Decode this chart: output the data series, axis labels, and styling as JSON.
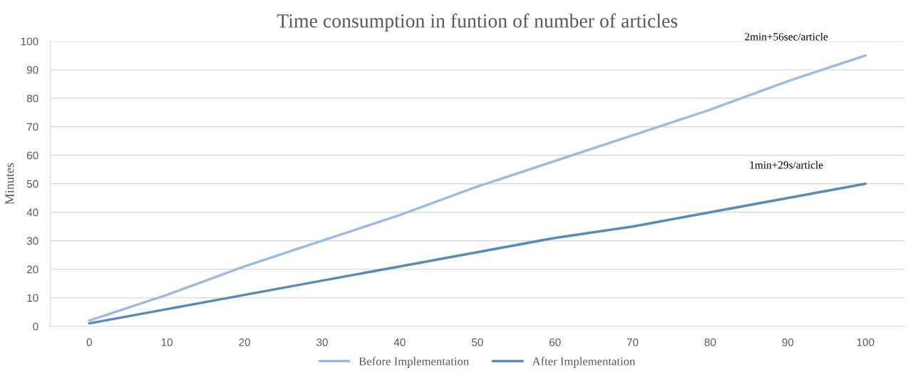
{
  "chart_data": {
    "type": "line",
    "title": "Time consumption in funtion of number of articles",
    "ylabel": "Minutes",
    "categories": [
      "0",
      "10",
      "20",
      "30",
      "40",
      "50",
      "60",
      "70",
      "80",
      "90",
      "100"
    ],
    "series": [
      {
        "name": "Before Implementation",
        "color": "#9dbbdc",
        "values": [
          2,
          11,
          21,
          30,
          39,
          49,
          58,
          67,
          76,
          86,
          95
        ]
      },
      {
        "name": "After Implementation",
        "color": "#5a8ab8",
        "values": [
          1,
          6,
          11,
          16,
          21,
          26,
          31,
          35,
          40,
          45,
          50
        ]
      }
    ],
    "annotations": [
      "2min+56sec/article",
      "1min+29s/article"
    ],
    "ylim": [
      0,
      100
    ],
    "yticks": [
      0,
      10,
      20,
      30,
      40,
      50,
      60,
      70,
      80,
      90,
      100
    ],
    "grid": "y",
    "legend": "bottom",
    "marker": "none",
    "line_style": "solid"
  }
}
